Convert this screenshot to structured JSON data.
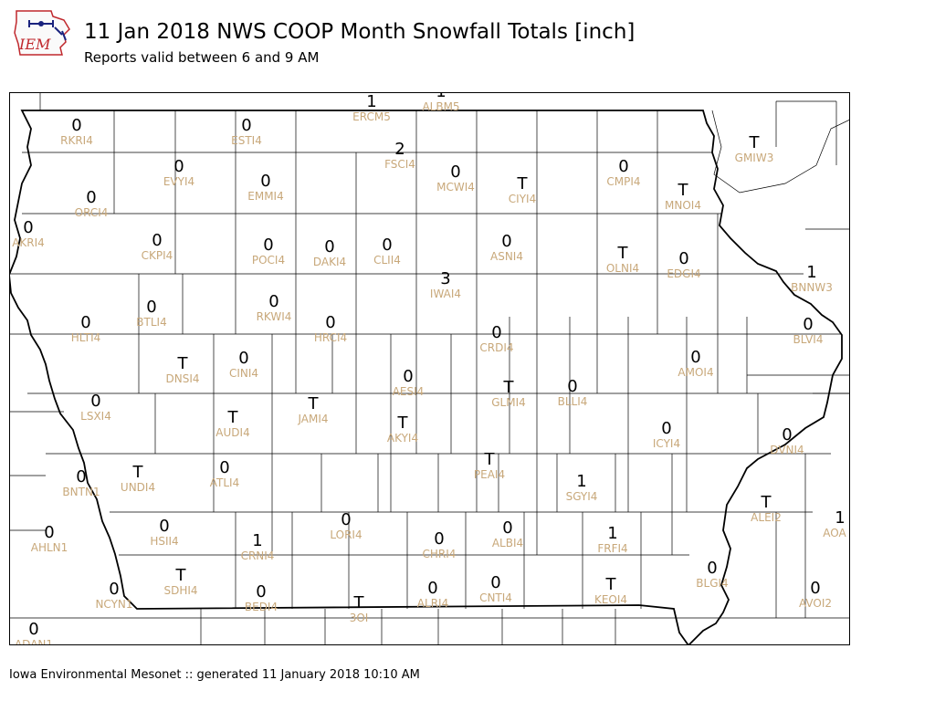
{
  "header": {
    "title": "11 Jan 2018 NWS COOP Month Snowfall Totals [inch]",
    "subtitle": "Reports valid between 6 and 9 AM",
    "logo_text": "IEM"
  },
  "footer": {
    "text": "Iowa Environmental Mesonet :: generated 11 January 2018 10:10 AM"
  },
  "colors": {
    "value": "#000000",
    "station_id": "#c8a87a",
    "logo_red": "#c0282d",
    "logo_blue": "#1a237e"
  },
  "stations": [
    {
      "id": "RKRI4",
      "value": "0"
    },
    {
      "id": "ESTI4",
      "value": "0"
    },
    {
      "id": "ERCM5",
      "value": "1"
    },
    {
      "id": "ALBM5",
      "value": "1"
    },
    {
      "id": "FSCI4",
      "value": "2"
    },
    {
      "id": "GMIW3",
      "value": "T"
    },
    {
      "id": "EVYI4",
      "value": "0"
    },
    {
      "id": "EMMI4",
      "value": "0"
    },
    {
      "id": "MCWI4",
      "value": "0"
    },
    {
      "id": "CIYI4",
      "value": "T"
    },
    {
      "id": "CMPI4",
      "value": "0"
    },
    {
      "id": "MNOI4",
      "value": "T"
    },
    {
      "id": "ORCI4",
      "value": "0"
    },
    {
      "id": "AKRI4",
      "value": "0"
    },
    {
      "id": "CKPI4",
      "value": "0"
    },
    {
      "id": "POCI4",
      "value": "0"
    },
    {
      "id": "DAKI4",
      "value": "0"
    },
    {
      "id": "CLII4",
      "value": "0"
    },
    {
      "id": "ASNI4",
      "value": "0"
    },
    {
      "id": "OLNI4",
      "value": "T"
    },
    {
      "id": "EDGI4",
      "value": "0"
    },
    {
      "id": "BNNW3",
      "value": "1"
    },
    {
      "id": "IWAI4",
      "value": "3"
    },
    {
      "id": "BTLI4",
      "value": "0"
    },
    {
      "id": "RKWI4",
      "value": "0"
    },
    {
      "id": "HLTI4",
      "value": "0"
    },
    {
      "id": "HRCI4",
      "value": "0"
    },
    {
      "id": "CRDI4",
      "value": "0"
    },
    {
      "id": "BLVI4",
      "value": "0"
    },
    {
      "id": "DNSI4",
      "value": "T"
    },
    {
      "id": "CINI4",
      "value": "0"
    },
    {
      "id": "AMOI4",
      "value": "0"
    },
    {
      "id": "AESI4",
      "value": "0"
    },
    {
      "id": "GLMI4",
      "value": "T"
    },
    {
      "id": "BLLI4",
      "value": "0"
    },
    {
      "id": "LSXI4",
      "value": "0"
    },
    {
      "id": "JAMI4",
      "value": "T"
    },
    {
      "id": "AUDI4",
      "value": "T"
    },
    {
      "id": "AKYI4",
      "value": "T"
    },
    {
      "id": "ICYI4",
      "value": "0"
    },
    {
      "id": "DVNI4",
      "value": "0"
    },
    {
      "id": "PEAI4",
      "value": "T"
    },
    {
      "id": "UNDI4",
      "value": "T"
    },
    {
      "id": "ATLI4",
      "value": "0"
    },
    {
      "id": "BNTN1",
      "value": "0"
    },
    {
      "id": "SGYI4",
      "value": "1"
    },
    {
      "id": "ALEI2",
      "value": "T"
    },
    {
      "id": "AOA",
      "value": "1"
    },
    {
      "id": "LORI4",
      "value": "0"
    },
    {
      "id": "HSII4",
      "value": "0"
    },
    {
      "id": "CRNI4",
      "value": "1"
    },
    {
      "id": "CHRI4",
      "value": "0"
    },
    {
      "id": "ALBI4",
      "value": "0"
    },
    {
      "id": "FRFI4",
      "value": "1"
    },
    {
      "id": "AHLN1",
      "value": "0"
    },
    {
      "id": "SDHI4",
      "value": "T"
    },
    {
      "id": "NCYN1",
      "value": "0"
    },
    {
      "id": "BEDI4",
      "value": "0"
    },
    {
      "id": "ALRI4",
      "value": "0"
    },
    {
      "id": "CNTI4",
      "value": "0"
    },
    {
      "id": "KEOI4",
      "value": "T"
    },
    {
      "id": "BLGI4",
      "value": "0"
    },
    {
      "id": "AVOI2",
      "value": "0"
    },
    {
      "id": "3OI",
      "value": "T"
    },
    {
      "id": "ADAN1",
      "value": "0"
    }
  ]
}
